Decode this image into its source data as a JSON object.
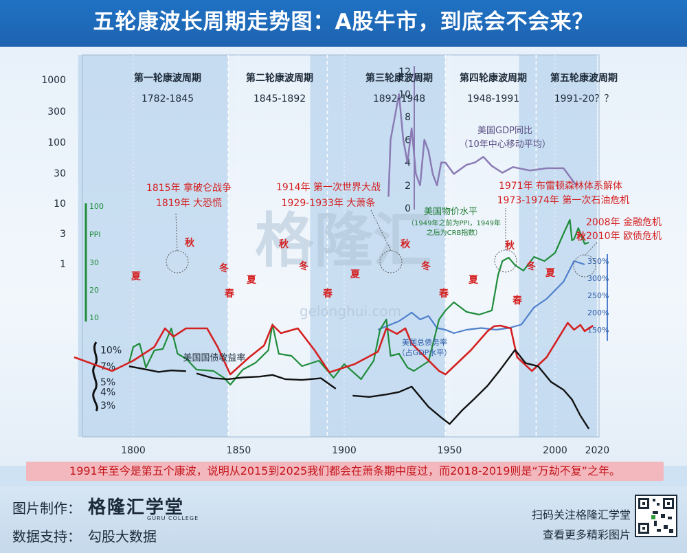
{
  "header": {
    "title": "五轮康波长周期走势图：A股牛市，到底会不会来？"
  },
  "cycles": [
    {
      "name": "第一轮康波周期",
      "years": "1782-1845"
    },
    {
      "name": "第二轮康波周期",
      "years": "1845-1892"
    },
    {
      "name": "第三轮康波周期",
      "years": "1892-1948"
    },
    {
      "name": "第四轮康波周期",
      "years": "1948-1991"
    },
    {
      "name": "第五轮康波周期",
      "years": "1991-20？？"
    }
  ],
  "seasons": [
    "夏",
    "秋",
    "冬",
    "春",
    "夏",
    "秋",
    "冬",
    "春",
    "夏",
    "秋",
    "冬",
    "春",
    "夏",
    "秋",
    "冬",
    "春",
    "夏",
    "秋"
  ],
  "events": [
    "1815年 拿破仑战争",
    "1819年 大恐慌",
    "1914年 第一次世界大战",
    "1929-1933年 大萧条",
    "1971年 布雷顿森林体系解体",
    "1973-1974年 第一次石油危机",
    "2008年 金融危机",
    "2010年 欧债危机"
  ],
  "labels": {
    "gdp": "美国GDP同比",
    "gdp_sub": "（10年中心移动平均）",
    "ppi": "美国物价水平",
    "ppi_sub1": "（1949年之前为PPI，1949年",
    "ppi_sub2": "之后为CRB指数）",
    "debt": "美国总债务率",
    "debt_sub": "（占GDP水平）",
    "bond": "美国国债收益率",
    "ppi_axis": "PPI",
    "watermark": "格隆汇",
    "watermark_sub": "gelonghui.com"
  },
  "summary": "1991年至今是第五个康波，说明从2015到2025我们都会在萧条期中度过，而2018-2019则是“万劫不复”之年。",
  "footer": {
    "made_label": "图片制作：",
    "brand": "格隆汇学堂",
    "brand_sub": "GURU COLLEGE",
    "data_label": "数据支持：",
    "data_value": "勾股大数据",
    "scan": "扫码关注格隆汇学堂",
    "more": "查看更多精彩图片"
  },
  "colors": {
    "cycle_band": "#a9cbea",
    "cycle_line": "#d42020",
    "price": "#1e8c3a",
    "gdp": "#8a7bb4",
    "debt": "#4f7fcc",
    "bond": "#111111",
    "event": "#d42020"
  },
  "chart_data": {
    "type": "line",
    "x_ticks": [
      1800,
      1850,
      1900,
      1950,
      2000,
      2020
    ],
    "xlim": [
      1772,
      2030
    ],
    "left_axis_ticks": [
      "1000",
      "300",
      "100",
      "30",
      "10",
      "3",
      "1"
    ],
    "ppi_axis_ticks": [
      "100",
      "30",
      "20",
      "10"
    ],
    "gdp_axis_ticks": [
      "12",
      "10",
      "8",
      "6",
      "4",
      "2",
      "0"
    ],
    "debt_axis_ticks": [
      "350%",
      "300%",
      "250%",
      "200%",
      "150%"
    ],
    "bond_axis_ticks": [
      "10%",
      "7%",
      "5%",
      "4%",
      "3%"
    ],
    "shaded_eras": [
      [
        1782,
        1845
      ],
      [
        1892,
        1948
      ],
      [
        1991,
        2020
      ]
    ],
    "series": [
      {
        "name": "kondratiev_cycle",
        "x": [
          1772,
          1790,
          1800,
          1810,
          1815,
          1819,
          1825,
          1835,
          1840,
          1846,
          1855,
          1862,
          1866,
          1870,
          1878,
          1886,
          1893,
          1905,
          1916,
          1920,
          1925,
          1929,
          1932,
          1945,
          1948,
          1960,
          1968,
          1971,
          1974,
          1979,
          1982,
          1989,
          1996,
          2006,
          2009,
          2012,
          2014,
          2018
        ],
        "y": [
          520,
          540,
          525,
          505,
          478,
          490,
          478,
          478,
          505,
          545,
          520,
          503,
          473,
          485,
          478,
          510,
          542,
          530,
          512,
          478,
          486,
          478,
          500,
          540,
          545,
          510,
          482,
          475,
          474,
          478,
          520,
          540,
          520,
          470,
          480,
          473,
          482,
          474
        ]
      },
      {
        "name": "price_level",
        "x": [
          1798,
          1800,
          1803,
          1806,
          1810,
          1814,
          1818,
          1821,
          1825,
          1830,
          1838,
          1843,
          1846,
          1852,
          1858,
          1864,
          1866,
          1869,
          1875,
          1880,
          1888,
          1895,
          1900,
          1908,
          1914,
          1917,
          1920,
          1922,
          1926,
          1930,
          1933,
          1940,
          1945,
          1948,
          1952,
          1958,
          1964,
          1970,
          1973,
          1975,
          1978,
          1981,
          1985,
          1990,
          1995,
          2000,
          2004,
          2007,
          2008,
          2009,
          2011,
          2014,
          2016
        ],
        "y": [
          528,
          505,
          500,
          535,
          510,
          508,
          478,
          515,
          522,
          538,
          540,
          550,
          560,
          538,
          528,
          510,
          472,
          515,
          518,
          533,
          525,
          550,
          530,
          552,
          525,
          480,
          465,
          518,
          515,
          535,
          540,
          526,
          465,
          452,
          440,
          454,
          458,
          452,
          400,
          380,
          375,
          386,
          394,
          374,
          380,
          368,
          340,
          320,
          350,
          348,
          332,
          355,
          353
        ]
      },
      {
        "name": "us_gdp_yoy",
        "x": [
          1921,
          1922,
          1924,
          1926,
          1928,
          1930,
          1932,
          1934,
          1936,
          1938,
          1940,
          1942,
          1944,
          1946,
          1948,
          1952,
          1958,
          1962,
          1966,
          1970,
          1975,
          1980,
          1988,
          1996,
          2004,
          2010
        ],
        "y": [
          1,
          6,
          8,
          10,
          6,
          4,
          7,
          3,
          2,
          6,
          5,
          3,
          2,
          4,
          4,
          3,
          3.8,
          4,
          4.5,
          3.7,
          3.1,
          3.6,
          3.3,
          3.5,
          3.5,
          2
        ]
      },
      {
        "name": "us_total_debt_ratio",
        "x": [
          1916,
          1920,
          1926,
          1932,
          1936,
          1940,
          1944,
          1948,
          1952,
          1958,
          1965,
          1972,
          1978,
          1984,
          1990,
          1996,
          2004,
          2009,
          2014
        ],
        "y": [
          150,
          160,
          175,
          200,
          180,
          190,
          155,
          150,
          140,
          150,
          155,
          150,
          155,
          165,
          215,
          240,
          290,
          350,
          340
        ]
      },
      {
        "name": "us_treasury_yield",
        "x": [
          1798,
          1805,
          1812,
          1818,
          1825,
          1830,
          1838,
          1845,
          1852,
          1860,
          1866,
          1872,
          1880,
          1889,
          1896,
          1904,
          1912,
          1920,
          1926,
          1932,
          1940,
          1946,
          1950,
          1956,
          1962,
          1968,
          1974,
          1981,
          1986,
          1992,
          1998,
          2004,
          2008,
          2012,
          2016
        ],
        "y": [
          7,
          6.6,
          6.2,
          6.4,
          6.3,
          6.0,
          5.4,
          5.3,
          5.5,
          5.6,
          5.8,
          5.3,
          5.2,
          5.4,
          4.3,
          3.7,
          3.6,
          3.8,
          4.0,
          4.5,
          2.9,
          2.3,
          2.0,
          2.7,
          3.5,
          4.6,
          6.5,
          10.0,
          7.5,
          7.0,
          5.0,
          4.2,
          3.4,
          2.4,
          1.8
        ]
      }
    ]
  }
}
